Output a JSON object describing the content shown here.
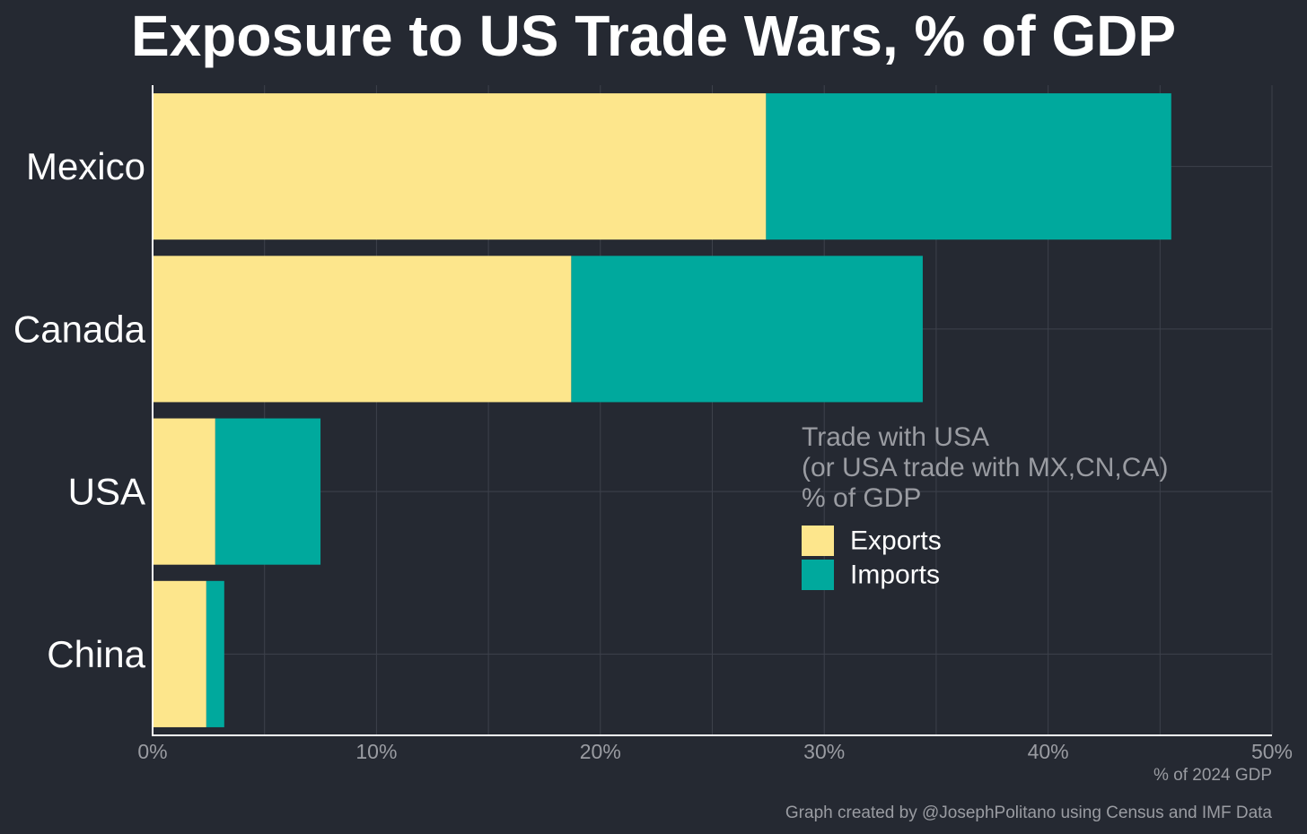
{
  "chart_data": {
    "type": "bar",
    "orientation": "horizontal",
    "stacked": true,
    "title": "Exposure to US Trade Wars, % of GDP",
    "categories": [
      "Mexico",
      "Canada",
      "USA",
      "China"
    ],
    "series": [
      {
        "name": "Exports",
        "color": "#fde68c",
        "values": [
          27.4,
          18.7,
          2.8,
          2.4
        ]
      },
      {
        "name": "Imports",
        "color": "#00a99d",
        "values": [
          18.1,
          15.7,
          4.7,
          0.8
        ]
      }
    ],
    "xlabel": "% of 2024 GDP",
    "xlim": [
      0,
      50
    ],
    "x_ticks": [
      {
        "value": 0,
        "label": "0%"
      },
      {
        "value": 10,
        "label": "10%"
      },
      {
        "value": 20,
        "label": "20%"
      },
      {
        "value": 30,
        "label": "30%"
      },
      {
        "value": 40,
        "label": "40%"
      },
      {
        "value": 50,
        "label": "50%"
      }
    ],
    "grid": true,
    "legend": {
      "title_lines": [
        "Trade with USA",
        "(or USA trade with MX,CN,CA)",
        "% of GDP"
      ],
      "placement": "center-right"
    },
    "source_note": "Graph created by @JosephPolitano using Census and IMF Data"
  },
  "colors": {
    "background": "#252932",
    "grid": "#3d414b",
    "axis": "#ffffff",
    "muted_text": "#9a9ca2",
    "text": "#ffffff"
  }
}
